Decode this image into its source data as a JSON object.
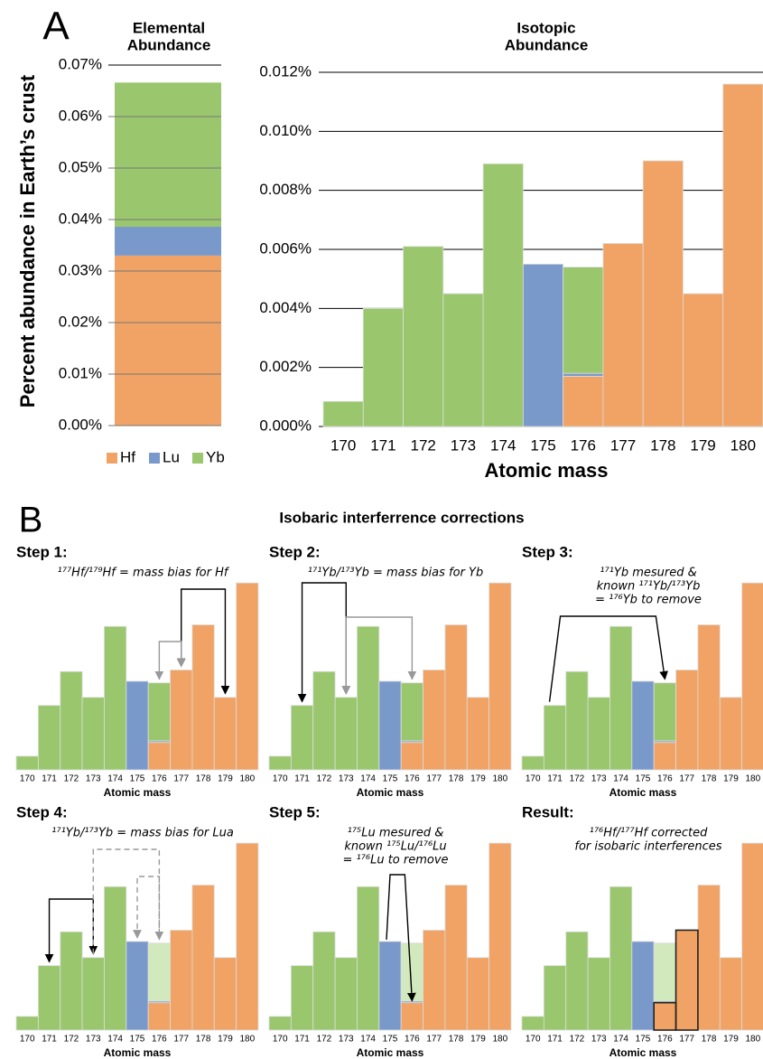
{
  "panel_labels": [
    "A",
    "B"
  ],
  "chart_data": [
    {
      "type": "stacked-bar",
      "title": [
        "Elemental",
        "Abundance"
      ],
      "y_label": "Percent abundance in Earth’s crust",
      "series": [
        {
          "name": "Hf",
          "color": "#f0a365",
          "values": [
            0.033
          ]
        },
        {
          "name": "Lu",
          "color": "#7a99cb",
          "values": [
            0.0056
          ]
        },
        {
          "name": "Yb",
          "color": "#9ac76e",
          "values": [
            0.028
          ]
        }
      ],
      "ylim": [
        0,
        0.07
      ],
      "yticks": [
        {
          "value": 0,
          "label": "0.00%"
        },
        {
          "value": 0.01,
          "label": "0.01%"
        },
        {
          "value": 0.02,
          "label": "0.02%"
        },
        {
          "value": 0.03,
          "label": "0.03%"
        },
        {
          "value": 0.04,
          "label": "0.04%"
        },
        {
          "value": 0.05,
          "label": "0.05%"
        },
        {
          "value": 0.06,
          "label": "0.06%"
        },
        {
          "value": 0.07,
          "label": "0.07%"
        }
      ],
      "grid": true,
      "legend": "bottom"
    },
    {
      "type": "stacked-bar",
      "title": [
        "Isotopic",
        "Abundance"
      ],
      "x_label": "Atomic mass",
      "categories": [
        170,
        171,
        172,
        173,
        174,
        175,
        176,
        177,
        178,
        179,
        180
      ],
      "series": [
        {
          "name": "Hf",
          "color": "#f0a365",
          "values": [
            null,
            null,
            null,
            null,
            null,
            null,
            0.0017,
            0.0062,
            0.009,
            0.0045,
            0.0116
          ]
        },
        {
          "name": "Lu",
          "color": "#7a99cb",
          "values": [
            null,
            null,
            null,
            null,
            null,
            0.0055,
            0.0001,
            null,
            null,
            null,
            null
          ]
        },
        {
          "name": "Yb",
          "color": "#9ac76e",
          "values": [
            0.00085,
            0.004,
            0.0061,
            0.0045,
            0.0089,
            null,
            0.0036,
            null,
            null,
            null,
            null
          ]
        }
      ],
      "ylim": [
        0,
        0.012
      ],
      "yticks": [
        {
          "value": 0,
          "label": "0.000%"
        },
        {
          "value": 0.002,
          "label": "0.002%"
        },
        {
          "value": 0.004,
          "label": "0.004%"
        },
        {
          "value": 0.006,
          "label": "0.006%"
        },
        {
          "value": 0.008,
          "label": "0.008%"
        },
        {
          "value": 0.01,
          "label": "0.010%"
        },
        {
          "value": 0.012,
          "label": "0.012%"
        }
      ],
      "grid": true
    }
  ],
  "corrections": {
    "title": "Isobaric interferrence corrections",
    "panels": [
      {
        "title": "Step 1:",
        "annotation": [
          "¹⁷⁷Hf/¹⁷⁹Hf = mass bias for Hf"
        ]
      },
      {
        "title": "Step 2:",
        "annotation": [
          "¹⁷¹Yb/¹⁷³Yb = mass bias for Yb"
        ]
      },
      {
        "title": "Step 3:",
        "annotation": [
          "¹⁷¹Yb mesured &",
          "known ¹⁷¹Yb/¹⁷³Yb",
          "= ¹⁷⁶Yb to remove"
        ]
      },
      {
        "title": "Step 4:",
        "annotation": [
          "¹⁷¹Yb/¹⁷³Yb = mass bias for Lua"
        ]
      },
      {
        "title": "Step 5:",
        "annotation": [
          "¹⁷⁵Lu mesured &",
          "known ¹⁷⁵Lu/¹⁷⁶Lu",
          "= ¹⁷⁶Lu to remove"
        ]
      },
      {
        "title": "Result:",
        "annotation": [
          "¹⁷⁶Hf/¹⁷⁷Hf corrected",
          "for isobaric interferences"
        ]
      }
    ]
  }
}
